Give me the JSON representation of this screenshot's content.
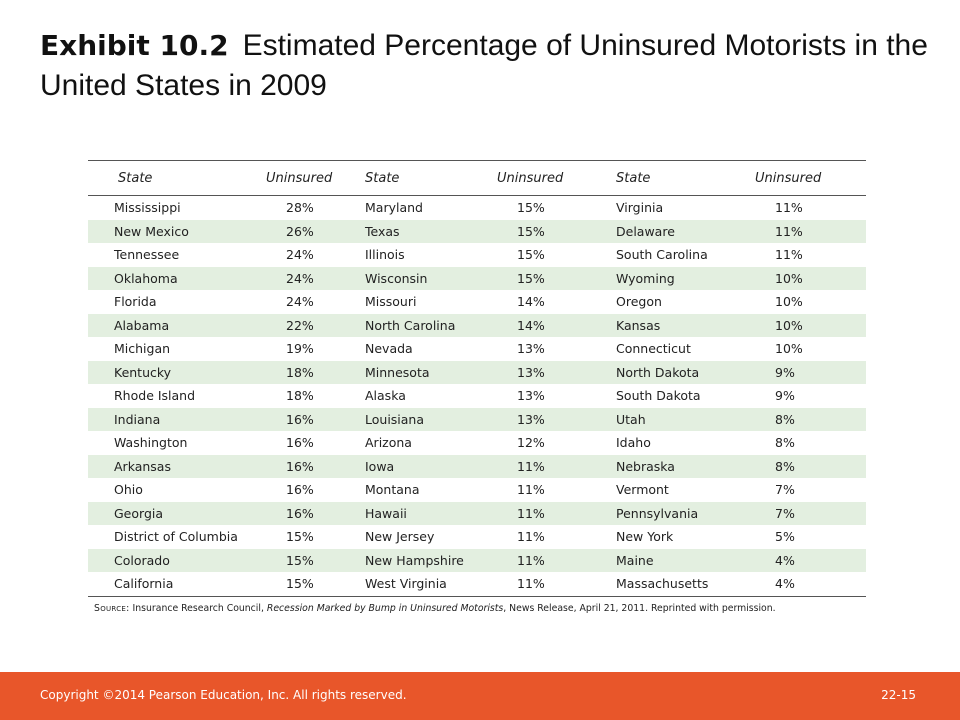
{
  "title": {
    "exhibit": "Exhibit 10.2",
    "text": "Estimated Percentage of Uninsured Motorists in the United States in 2009"
  },
  "table": {
    "headers": [
      "State",
      "Uninsured",
      "State",
      "Uninsured",
      "State",
      "Uninsured"
    ],
    "rows": [
      [
        "Mississippi",
        "28%",
        "Maryland",
        "15%",
        "Virginia",
        "11%"
      ],
      [
        "New Mexico",
        "26%",
        "Texas",
        "15%",
        "Delaware",
        "11%"
      ],
      [
        "Tennessee",
        "24%",
        "Illinois",
        "15%",
        "South Carolina",
        "11%"
      ],
      [
        "Oklahoma",
        "24%",
        "Wisconsin",
        "15%",
        "Wyoming",
        "10%"
      ],
      [
        "Florida",
        "24%",
        "Missouri",
        "14%",
        "Oregon",
        "10%"
      ],
      [
        "Alabama",
        "22%",
        "North Carolina",
        "14%",
        "Kansas",
        "10%"
      ],
      [
        "Michigan",
        "19%",
        "Nevada",
        "13%",
        "Connecticut",
        "10%"
      ],
      [
        "Kentucky",
        "18%",
        "Minnesota",
        "13%",
        "North Dakota",
        "9%"
      ],
      [
        "Rhode Island",
        "18%",
        "Alaska",
        "13%",
        "South Dakota",
        "9%"
      ],
      [
        "Indiana",
        "16%",
        "Louisiana",
        "13%",
        "Utah",
        "8%"
      ],
      [
        "Washington",
        "16%",
        "Arizona",
        "12%",
        "Idaho",
        "8%"
      ],
      [
        "Arkansas",
        "16%",
        "Iowa",
        "11%",
        "Nebraska",
        "8%"
      ],
      [
        "Ohio",
        "16%",
        "Montana",
        "11%",
        "Vermont",
        "7%"
      ],
      [
        "Georgia",
        "16%",
        "Hawaii",
        "11%",
        "Pennsylvania",
        "7%"
      ],
      [
        "District of Columbia",
        "15%",
        "New Jersey",
        "11%",
        "New York",
        "5%"
      ],
      [
        "Colorado",
        "15%",
        "New Hampshire",
        "11%",
        "Maine",
        "4%"
      ],
      [
        "California",
        "15%",
        "West Virginia",
        "11%",
        "Massachusetts",
        "4%"
      ]
    ]
  },
  "source": {
    "label": "Source:",
    "pre": " Insurance Research Council, ",
    "publication": "Recession Marked by Bump in Uninsured Motorists",
    "post": ", News Release, April 21, 2011. Reprinted with permission."
  },
  "footer": {
    "copyright": "Copyright ©2014 Pearson Education, Inc. All rights reserved.",
    "page": "22-15",
    "color": "#e8562a"
  },
  "colors": {
    "row_stripe": "#e3efe0"
  }
}
